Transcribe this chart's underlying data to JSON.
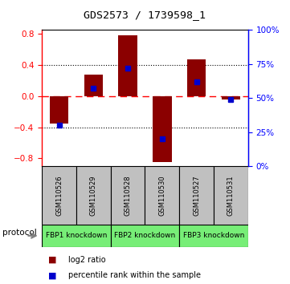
{
  "title": "GDS2573 / 1739598_1",
  "samples": [
    "GSM110526",
    "GSM110529",
    "GSM110528",
    "GSM110530",
    "GSM110527",
    "GSM110531"
  ],
  "log2_ratio": [
    -0.35,
    0.27,
    0.78,
    -0.85,
    0.47,
    -0.04
  ],
  "percentile_rank": [
    30,
    57,
    72,
    20,
    62,
    49
  ],
  "proto_labels": [
    "FBP1 knockdown",
    "FBP2 knockdown",
    "FBP3 knockdown"
  ],
  "proto_ranges": [
    [
      0,
      1
    ],
    [
      2,
      3
    ],
    [
      4,
      5
    ]
  ],
  "ylim_left": [
    -0.9,
    0.85
  ],
  "ylim_right": [
    0,
    100
  ],
  "bar_color": "#8B0000",
  "dot_color": "#0000CC",
  "zero_line_color": "#FF0000",
  "bg_color": "#FFFFFF",
  "sample_bg": "#C0C0C0",
  "protocol_bg": "#77EE77",
  "bar_width": 0.55,
  "yticks_left": [
    -0.8,
    -0.4,
    0.0,
    0.4,
    0.8
  ],
  "yticks_right": [
    0,
    25,
    50,
    75,
    100
  ],
  "dot_size": 5
}
